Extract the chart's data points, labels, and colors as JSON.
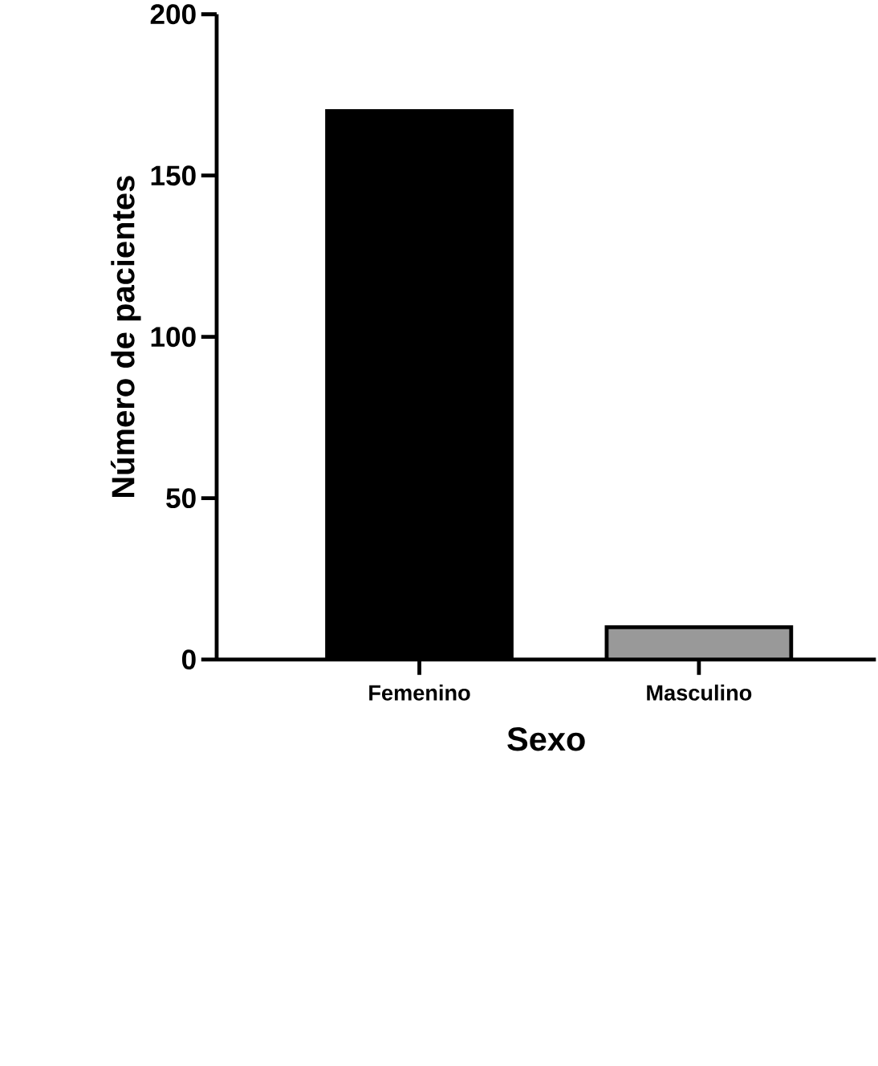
{
  "chart_data": {
    "type": "bar",
    "xlabel": "Sexo",
    "ylabel": "Número de pacientes",
    "categories": [
      "Femenino",
      "Masculino"
    ],
    "values": [
      170,
      10
    ],
    "colors": [
      "#000000",
      "#999999"
    ],
    "ylim": [
      0,
      200
    ],
    "yticks": [
      0,
      50,
      100,
      150,
      200
    ]
  }
}
